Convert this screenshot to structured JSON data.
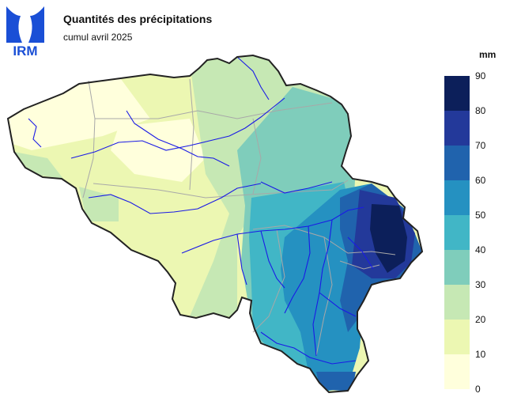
{
  "header": {
    "logo_text": "IRM",
    "title": "Quantités des précipitations",
    "subtitle": "cumul avril 2025"
  },
  "legend": {
    "unit": "mm",
    "ticks": [
      "90",
      "80",
      "70",
      "60",
      "50",
      "40",
      "30",
      "20",
      "10",
      "0"
    ],
    "classes": [
      {
        "range": "80–90",
        "color": "#0c1f5a"
      },
      {
        "range": "70–80",
        "color": "#23399a"
      },
      {
        "range": "60–70",
        "color": "#2063ad"
      },
      {
        "range": "50–60",
        "color": "#2591c1"
      },
      {
        "range": "40–50",
        "color": "#41b6c6"
      },
      {
        "range": "30–40",
        "color": "#7fcdbb"
      },
      {
        "range": "20–30",
        "color": "#c6e8b4"
      },
      {
        "range": "10–20",
        "color": "#ecf7b2"
      },
      {
        "range": "0–10",
        "color": "#ffffdc"
      }
    ]
  },
  "colors": {
    "logo_blue": "#1a4fd6",
    "border": "#222222",
    "rivers": "#1a1ae6",
    "province_lines": "#a8a8a8"
  }
}
